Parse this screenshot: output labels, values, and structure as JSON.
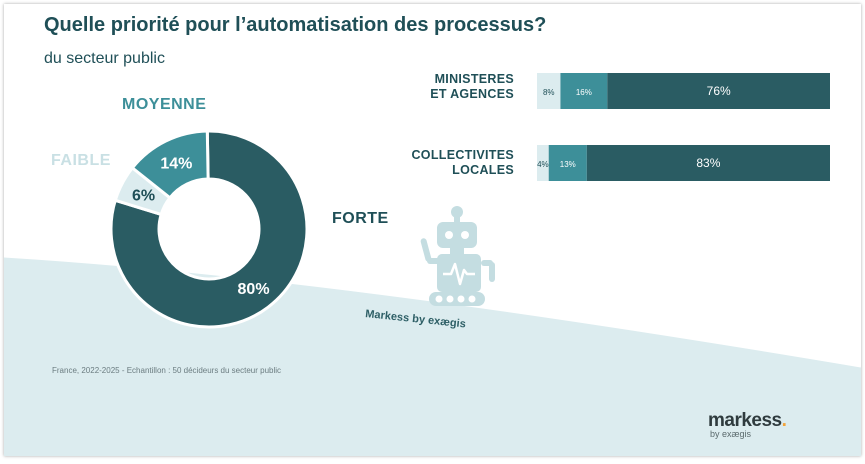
{
  "title": "Quelle priorité pour l’automatisation des processus?",
  "subtitle": "du secteur public",
  "colors": {
    "dark": "#2a5c63",
    "mid": "#3d8f99",
    "light": "#dcecef",
    "text_dark": "#1f4f57",
    "wave": "#dcecef"
  },
  "chart_data": [
    {
      "type": "pie",
      "slices": [
        {
          "label": "FORTE",
          "value": 80,
          "display": "80%"
        },
        {
          "label": "FAIBLE",
          "value": 6,
          "display": "6%"
        },
        {
          "label": "MOYENNE",
          "value": 14,
          "display": "14%"
        }
      ]
    },
    {
      "type": "bar",
      "orientation": "horizontal",
      "stacked": true,
      "categories": [
        "MINISTERES ET AGENCES",
        "COLLECTIVITES LOCALES"
      ],
      "category_lines": [
        [
          "MINISTERES",
          "ET AGENCES"
        ],
        [
          "COLLECTIVITES",
          "LOCALES"
        ]
      ],
      "series": [
        {
          "values": [
            8,
            4
          ],
          "display": [
            "8%",
            "4%"
          ]
        },
        {
          "values": [
            16,
            13
          ],
          "display": [
            "16%",
            "13%"
          ]
        },
        {
          "values": [
            76,
            83
          ],
          "display": [
            "76%",
            "83%"
          ]
        }
      ]
    }
  ],
  "watermark": "Markess by exægis",
  "footnote": "France, 2022-2025 - Echantillon : 50 décideurs du secteur public",
  "logo": {
    "name": "markess",
    "dot": ".",
    "sub": "by exægis"
  },
  "icons": {
    "robot": "robot-icon"
  }
}
